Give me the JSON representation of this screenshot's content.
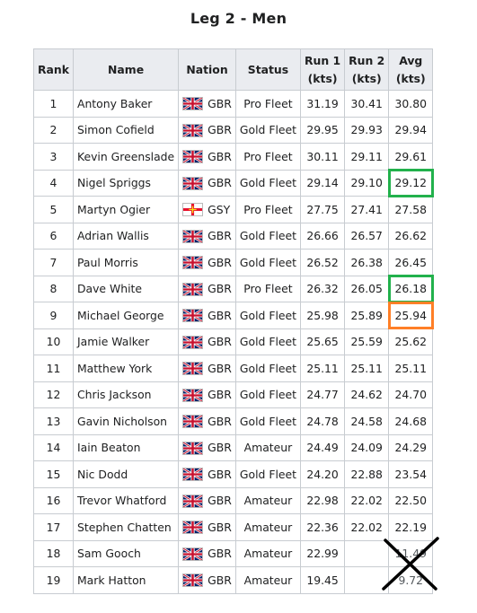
{
  "title": "Leg 2 - Men",
  "headers": {
    "rank": "Rank",
    "name": "Name",
    "nation": "Nation",
    "status": "Status",
    "run1": "Run 1",
    "run1_unit": "(kts)",
    "run2": "Run 2",
    "run2_unit": "(kts)",
    "avg": "Avg",
    "avg_unit": "(kts)"
  },
  "rows": [
    {
      "rank": "1",
      "name": "Antony Baker",
      "flag": "gbr-flag-icon",
      "nation": "GBR",
      "status": "Pro Fleet",
      "run1": "31.19",
      "run2": "30.41",
      "avg": "30.80",
      "highlight": ""
    },
    {
      "rank": "2",
      "name": "Simon Cofield",
      "flag": "gbr-flag-icon",
      "nation": "GBR",
      "status": "Gold Fleet",
      "run1": "29.95",
      "run2": "29.93",
      "avg": "29.94",
      "highlight": ""
    },
    {
      "rank": "3",
      "name": "Kevin Greenslade",
      "flag": "gbr-flag-icon",
      "nation": "GBR",
      "status": "Pro Fleet",
      "run1": "30.11",
      "run2": "29.11",
      "avg": "29.61",
      "highlight": ""
    },
    {
      "rank": "4",
      "name": "Nigel Spriggs",
      "flag": "gbr-flag-icon",
      "nation": "GBR",
      "status": "Gold Fleet",
      "run1": "29.14",
      "run2": "29.10",
      "avg": "29.12",
      "highlight": "green"
    },
    {
      "rank": "5",
      "name": "Martyn Ogier",
      "flag": "gsy-flag-icon",
      "nation": "GSY",
      "status": "Pro Fleet",
      "run1": "27.75",
      "run2": "27.41",
      "avg": "27.58",
      "highlight": ""
    },
    {
      "rank": "6",
      "name": "Adrian Wallis",
      "flag": "gbr-flag-icon",
      "nation": "GBR",
      "status": "Gold Fleet",
      "run1": "26.66",
      "run2": "26.57",
      "avg": "26.62",
      "highlight": ""
    },
    {
      "rank": "7",
      "name": "Paul Morris",
      "flag": "gbr-flag-icon",
      "nation": "GBR",
      "status": "Gold Fleet",
      "run1": "26.52",
      "run2": "26.38",
      "avg": "26.45",
      "highlight": ""
    },
    {
      "rank": "8",
      "name": "Dave White",
      "flag": "gbr-flag-icon",
      "nation": "GBR",
      "status": "Pro Fleet",
      "run1": "26.32",
      "run2": "26.05",
      "avg": "26.18",
      "highlight": "green"
    },
    {
      "rank": "9",
      "name": "Michael George",
      "flag": "gbr-flag-icon",
      "nation": "GBR",
      "status": "Gold Fleet",
      "run1": "25.98",
      "run2": "25.89",
      "avg": "25.94",
      "highlight": "orange"
    },
    {
      "rank": "10",
      "name": "Jamie Walker",
      "flag": "gbr-flag-icon",
      "nation": "GBR",
      "status": "Gold Fleet",
      "run1": "25.65",
      "run2": "25.59",
      "avg": "25.62",
      "highlight": ""
    },
    {
      "rank": "11",
      "name": "Matthew York",
      "flag": "gbr-flag-icon",
      "nation": "GBR",
      "status": "Gold Fleet",
      "run1": "25.11",
      "run2": "25.11",
      "avg": "25.11",
      "highlight": ""
    },
    {
      "rank": "12",
      "name": "Chris Jackson",
      "flag": "gbr-flag-icon",
      "nation": "GBR",
      "status": "Gold Fleet",
      "run1": "24.77",
      "run2": "24.62",
      "avg": "24.70",
      "highlight": ""
    },
    {
      "rank": "13",
      "name": "Gavin Nicholson",
      "flag": "gbr-flag-icon",
      "nation": "GBR",
      "status": "Gold Fleet",
      "run1": "24.78",
      "run2": "24.58",
      "avg": "24.68",
      "highlight": ""
    },
    {
      "rank": "14",
      "name": "Iain Beaton",
      "flag": "gbr-flag-icon",
      "nation": "GBR",
      "status": "Amateur",
      "run1": "24.49",
      "run2": "24.09",
      "avg": "24.29",
      "highlight": ""
    },
    {
      "rank": "15",
      "name": "Nic Dodd",
      "flag": "gbr-flag-icon",
      "nation": "GBR",
      "status": "Gold Fleet",
      "run1": "24.20",
      "run2": "22.88",
      "avg": "23.54",
      "highlight": ""
    },
    {
      "rank": "16",
      "name": "Trevor Whatford",
      "flag": "gbr-flag-icon",
      "nation": "GBR",
      "status": "Amateur",
      "run1": "22.98",
      "run2": "22.02",
      "avg": "22.50",
      "highlight": ""
    },
    {
      "rank": "17",
      "name": "Stephen Chatten",
      "flag": "gbr-flag-icon",
      "nation": "GBR",
      "status": "Amateur",
      "run1": "22.36",
      "run2": "22.02",
      "avg": "22.19",
      "highlight": ""
    },
    {
      "rank": "18",
      "name": "Sam Gooch",
      "flag": "gbr-flag-icon",
      "nation": "GBR",
      "status": "Amateur",
      "run1": "22.99",
      "run2": "",
      "avg": "11.49",
      "highlight": ""
    },
    {
      "rank": "19",
      "name": "Mark Hatton",
      "flag": "gbr-flag-icon",
      "nation": "GBR",
      "status": "Amateur",
      "run1": "19.45",
      "run2": "",
      "avg": "9.72",
      "highlight": ""
    }
  ],
  "colors": {
    "header_bg": "#eaecf0",
    "border": "#c8ccd1",
    "highlight_green": "#22b14c",
    "highlight_orange": "#ff7f27",
    "strike_x": "#000000"
  }
}
